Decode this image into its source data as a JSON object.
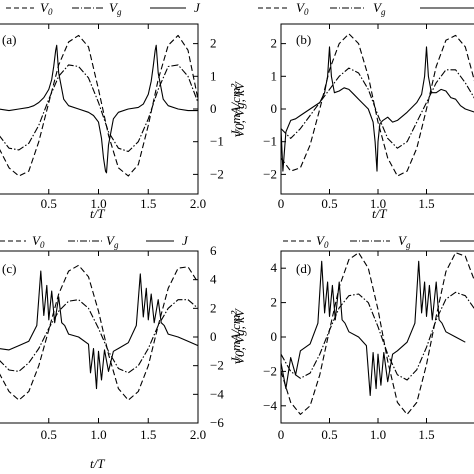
{
  "legend": {
    "v0": "V",
    "v0_sub": "0",
    "vg": "V",
    "vg_sub": "g",
    "j": "J"
  },
  "chart_data": [
    {
      "panel": "(a)",
      "type": "line",
      "x_label": "t/T",
      "y_right_label": "J, mA/cm²",
      "x_range": [
        0,
        2.0
      ],
      "x_ticks": [
        "0.5",
        "1.0",
        "1.5",
        "2.0"
      ],
      "y_right_range": [
        -2.6,
        2.6
      ],
      "y_right_ticks": [
        "2",
        "1",
        "0",
        "−1",
        "−2"
      ],
      "series": [
        {
          "name": "V0",
          "style": "dashed",
          "color": "#000000",
          "x": [
            0,
            0.1,
            0.2,
            0.3,
            0.4,
            0.5,
            0.6,
            0.7,
            0.8,
            0.9,
            1.0,
            1.1,
            1.2,
            1.3,
            1.4,
            1.5,
            1.6,
            1.7,
            1.8,
            1.9,
            2.0
          ],
          "y": [
            -1.2,
            -1.8,
            -2.05,
            -1.9,
            -1.0,
            0.2,
            1.35,
            2.05,
            2.25,
            1.9,
            0.6,
            -0.8,
            -1.8,
            -2.05,
            -1.7,
            -0.5,
            0.9,
            1.95,
            2.25,
            1.8,
            0.3
          ]
        },
        {
          "name": "Vg",
          "style": "dash-dot",
          "color": "#000000",
          "x": [
            0,
            0.1,
            0.2,
            0.3,
            0.4,
            0.5,
            0.6,
            0.7,
            0.8,
            0.9,
            1.0,
            1.1,
            1.2,
            1.3,
            1.4,
            1.5,
            1.6,
            1.7,
            1.8,
            1.9,
            2.0
          ],
          "y": [
            -0.8,
            -1.2,
            -1.25,
            -1.05,
            -0.5,
            0.3,
            1.0,
            1.35,
            1.3,
            0.95,
            0.2,
            -0.7,
            -1.2,
            -1.3,
            -1.0,
            -0.3,
            0.6,
            1.3,
            1.35,
            1.0,
            0.2
          ]
        },
        {
          "name": "J",
          "style": "solid",
          "color": "#000000",
          "x": [
            0,
            0.1,
            0.2,
            0.3,
            0.35,
            0.4,
            0.45,
            0.5,
            0.53,
            0.55,
            0.57,
            0.58,
            0.6,
            0.65,
            0.7,
            0.8,
            0.9,
            0.95,
            1.0,
            1.03,
            1.05,
            1.07,
            1.08,
            1.1,
            1.15,
            1.2,
            1.3,
            1.4,
            1.45,
            1.5,
            1.53,
            1.55,
            1.57,
            1.58,
            1.6,
            1.65,
            1.7,
            1.8,
            1.9,
            1.95,
            2.0
          ],
          "y": [
            0.0,
            -0.05,
            0.0,
            0.05,
            0.1,
            0.2,
            0.35,
            0.6,
            0.9,
            1.3,
            1.8,
            1.95,
            1.1,
            0.3,
            0.1,
            0.0,
            -0.1,
            -0.2,
            -0.4,
            -0.9,
            -1.5,
            -1.9,
            -1.95,
            -1.1,
            -0.3,
            -0.1,
            0.0,
            0.05,
            0.15,
            0.45,
            0.85,
            1.3,
            1.8,
            1.95,
            1.1,
            0.3,
            0.1,
            0.0,
            -0.05,
            -0.05,
            -0.05
          ]
        }
      ]
    },
    {
      "panel": "(b)",
      "type": "line",
      "x_label": "t/T",
      "y_left_label": "V0, Vg, kV",
      "x_range": [
        0,
        2.0
      ],
      "x_ticks": [
        "0",
        "0.5",
        "1.0",
        "1.5"
      ],
      "y_left_range": [
        -2.6,
        2.6
      ],
      "y_left_ticks": [
        "2",
        "1",
        "0",
        "−1",
        "−2"
      ],
      "series": [
        {
          "name": "V0",
          "style": "dashed",
          "color": "#000000",
          "x": [
            0,
            0.1,
            0.2,
            0.3,
            0.4,
            0.5,
            0.6,
            0.7,
            0.8,
            0.9,
            1.0,
            1.1,
            1.2,
            1.3,
            1.4,
            1.5,
            1.6,
            1.7,
            1.8,
            1.9,
            2.0
          ],
          "y": [
            -1.5,
            -1.9,
            -1.8,
            -1.1,
            0.0,
            1.2,
            2.0,
            2.3,
            2.0,
            1.0,
            -0.4,
            -1.5,
            -2.05,
            -1.9,
            -1.2,
            0.0,
            1.3,
            2.1,
            2.25,
            1.9,
            0.8
          ]
        },
        {
          "name": "Vg",
          "style": "dash-dot",
          "color": "#000000",
          "x": [
            0,
            0.1,
            0.2,
            0.3,
            0.4,
            0.5,
            0.6,
            0.7,
            0.8,
            0.9,
            1.0,
            1.1,
            1.2,
            1.3,
            1.4,
            1.5,
            1.6,
            1.7,
            1.8,
            1.9,
            2.0
          ],
          "y": [
            -0.6,
            -0.9,
            -0.6,
            -0.2,
            0.2,
            0.6,
            1.0,
            1.25,
            1.1,
            0.6,
            -0.2,
            -0.9,
            -1.2,
            -1.0,
            -0.4,
            0.2,
            0.8,
            1.2,
            1.2,
            0.8,
            0.3
          ]
        },
        {
          "name": "J",
          "style": "solid",
          "color": "#000000",
          "x": [
            0,
            0.02,
            0.05,
            0.1,
            0.15,
            0.2,
            0.3,
            0.4,
            0.45,
            0.48,
            0.5,
            0.52,
            0.55,
            0.6,
            0.65,
            0.7,
            0.75,
            0.8,
            0.9,
            0.95,
            0.97,
            0.99,
            1.0,
            1.02,
            1.05,
            1.1,
            1.15,
            1.2,
            1.3,
            1.4,
            1.45,
            1.48,
            1.5,
            1.52,
            1.55,
            1.6,
            1.65,
            1.7,
            1.75,
            1.8,
            1.85,
            1.9,
            2.0
          ],
          "y": [
            -0.6,
            -1.9,
            -0.7,
            -0.35,
            -0.3,
            -0.2,
            0.0,
            0.2,
            0.5,
            1.0,
            1.9,
            1.0,
            0.5,
            0.55,
            0.65,
            0.6,
            0.45,
            0.3,
            0.0,
            -0.4,
            -1.0,
            -1.9,
            -1.0,
            -0.45,
            -0.35,
            -0.25,
            -0.4,
            -0.35,
            -0.1,
            0.2,
            0.45,
            1.0,
            1.9,
            1.0,
            0.5,
            0.5,
            0.6,
            0.55,
            0.35,
            0.3,
            0.1,
            0.0,
            -0.1
          ]
        }
      ]
    },
    {
      "panel": "(c)",
      "type": "line",
      "x_label": "t/T",
      "y_right_label": "J, mA/cm²",
      "x_range": [
        0,
        2.0
      ],
      "x_ticks": [
        "0.5",
        "1.0",
        "1.5",
        "2.0"
      ],
      "y_right_range": [
        -6,
        6
      ],
      "y_right_ticks": [
        "6",
        "4",
        "2",
        "0",
        "−2",
        "−4",
        "−6"
      ],
      "series": [
        {
          "name": "V0",
          "style": "dashed",
          "color": "#000000",
          "x": [
            0,
            0.1,
            0.2,
            0.3,
            0.4,
            0.5,
            0.6,
            0.7,
            0.8,
            0.9,
            1.0,
            1.1,
            1.2,
            1.3,
            1.4,
            1.5,
            1.6,
            1.7,
            1.8,
            1.9,
            2.0
          ],
          "y": [
            -2.5,
            -3.8,
            -4.4,
            -3.8,
            -2.0,
            0.5,
            3.0,
            4.6,
            5.0,
            4.2,
            1.8,
            -1.2,
            -3.6,
            -4.4,
            -3.8,
            -2.0,
            0.8,
            3.4,
            4.8,
            4.9,
            3.8
          ]
        },
        {
          "name": "Vg",
          "style": "dash-dot",
          "color": "#000000",
          "x": [
            0,
            0.1,
            0.2,
            0.3,
            0.4,
            0.5,
            0.6,
            0.7,
            0.8,
            0.9,
            1.0,
            1.1,
            1.2,
            1.3,
            1.4,
            1.5,
            1.6,
            1.7,
            1.8,
            1.9,
            2.0
          ],
          "y": [
            -1.6,
            -2.3,
            -2.4,
            -1.8,
            -0.8,
            0.6,
            1.8,
            2.5,
            2.6,
            2.0,
            0.6,
            -1.0,
            -2.2,
            -2.5,
            -2.0,
            -0.8,
            0.8,
            2.0,
            2.6,
            2.6,
            2.0
          ]
        },
        {
          "name": "J",
          "style": "solid",
          "color": "#000000",
          "x": [
            0,
            0.1,
            0.2,
            0.3,
            0.38,
            0.42,
            0.45,
            0.48,
            0.5,
            0.53,
            0.56,
            0.6,
            0.63,
            0.66,
            0.7,
            0.8,
            0.9,
            0.92,
            0.95,
            0.98,
            1.0,
            1.03,
            1.06,
            1.1,
            1.15,
            1.2,
            1.3,
            1.38,
            1.42,
            1.45,
            1.48,
            1.5,
            1.53,
            1.56,
            1.6,
            1.63,
            1.66,
            1.7,
            1.8,
            1.9,
            2.0
          ],
          "y": [
            -0.8,
            -0.9,
            -0.6,
            -0.3,
            0.8,
            4.6,
            1.5,
            3.6,
            1.2,
            3.2,
            1.0,
            2.8,
            1.0,
            0.8,
            0.2,
            0.0,
            -0.5,
            -2.5,
            -0.8,
            -3.6,
            -1.0,
            -3.0,
            -0.9,
            -2.4,
            -1.0,
            -0.8,
            -0.4,
            0.8,
            4.4,
            1.4,
            3.4,
            1.2,
            3.0,
            1.0,
            2.6,
            1.0,
            0.8,
            0.2,
            0.0,
            -0.3,
            -0.6
          ]
        }
      ]
    },
    {
      "panel": "(d)",
      "type": "line",
      "x_label": "",
      "y_left_label": "V0, Vg, kV",
      "x_range": [
        0,
        2.0
      ],
      "x_ticks": [
        "0",
        "0.5",
        "1.0",
        "1.5"
      ],
      "y_left_range": [
        -5,
        5
      ],
      "y_left_ticks": [
        "4",
        "2",
        "0",
        "−2",
        "−4"
      ],
      "series": [
        {
          "name": "V0",
          "style": "dashed",
          "color": "#000000",
          "x": [
            0,
            0.1,
            0.2,
            0.3,
            0.4,
            0.5,
            0.6,
            0.7,
            0.8,
            0.9,
            1.0,
            1.1,
            1.2,
            1.3,
            1.4,
            1.5,
            1.6,
            1.7,
            1.8,
            1.9,
            2.0
          ],
          "y": [
            -2.0,
            -3.8,
            -4.5,
            -4.0,
            -2.2,
            0.4,
            2.9,
            4.5,
            4.9,
            4.0,
            1.6,
            -1.4,
            -3.8,
            -4.5,
            -3.8,
            -1.6,
            1.2,
            3.8,
            4.9,
            4.7,
            3.2
          ]
        },
        {
          "name": "Vg",
          "style": "dash-dot",
          "color": "#000000",
          "x": [
            0,
            0.1,
            0.2,
            0.3,
            0.4,
            0.5,
            0.6,
            0.7,
            0.8,
            0.9,
            1.0,
            1.1,
            1.2,
            1.3,
            1.4,
            1.5,
            1.6,
            1.7,
            1.8,
            1.9,
            2.0
          ],
          "y": [
            -1.0,
            -2.0,
            -2.4,
            -2.1,
            -1.0,
            0.4,
            1.7,
            2.4,
            2.5,
            2.0,
            0.6,
            -1.0,
            -2.2,
            -2.5,
            -1.9,
            -0.6,
            1.0,
            2.2,
            2.6,
            2.4,
            1.6
          ]
        },
        {
          "name": "J",
          "style": "solid",
          "color": "#000000",
          "x": [
            0,
            0.05,
            0.1,
            0.15,
            0.2,
            0.3,
            0.38,
            0.42,
            0.45,
            0.48,
            0.5,
            0.53,
            0.56,
            0.6,
            0.63,
            0.66,
            0.7,
            0.8,
            0.88,
            0.92,
            0.95,
            0.98,
            1.0,
            1.03,
            1.06,
            1.1,
            1.15,
            1.2,
            1.3,
            1.38,
            1.42,
            1.45,
            1.48,
            1.5,
            1.53,
            1.56,
            1.6,
            1.63,
            1.66,
            1.7,
            1.8,
            1.9
          ],
          "y": [
            -1.5,
            -3.0,
            -1.2,
            -2.2,
            -0.8,
            -0.4,
            0.8,
            4.4,
            1.4,
            3.2,
            1.2,
            3.0,
            1.0,
            3.2,
            1.0,
            0.8,
            0.3,
            0.0,
            -0.5,
            -3.4,
            -0.9,
            -3.0,
            -1.0,
            -2.8,
            -0.9,
            -2.6,
            -1.0,
            -0.8,
            -0.3,
            0.8,
            4.4,
            1.4,
            3.2,
            1.2,
            3.0,
            1.0,
            3.2,
            1.0,
            0.8,
            0.3,
            0.0,
            -0.3
          ]
        }
      ]
    }
  ]
}
